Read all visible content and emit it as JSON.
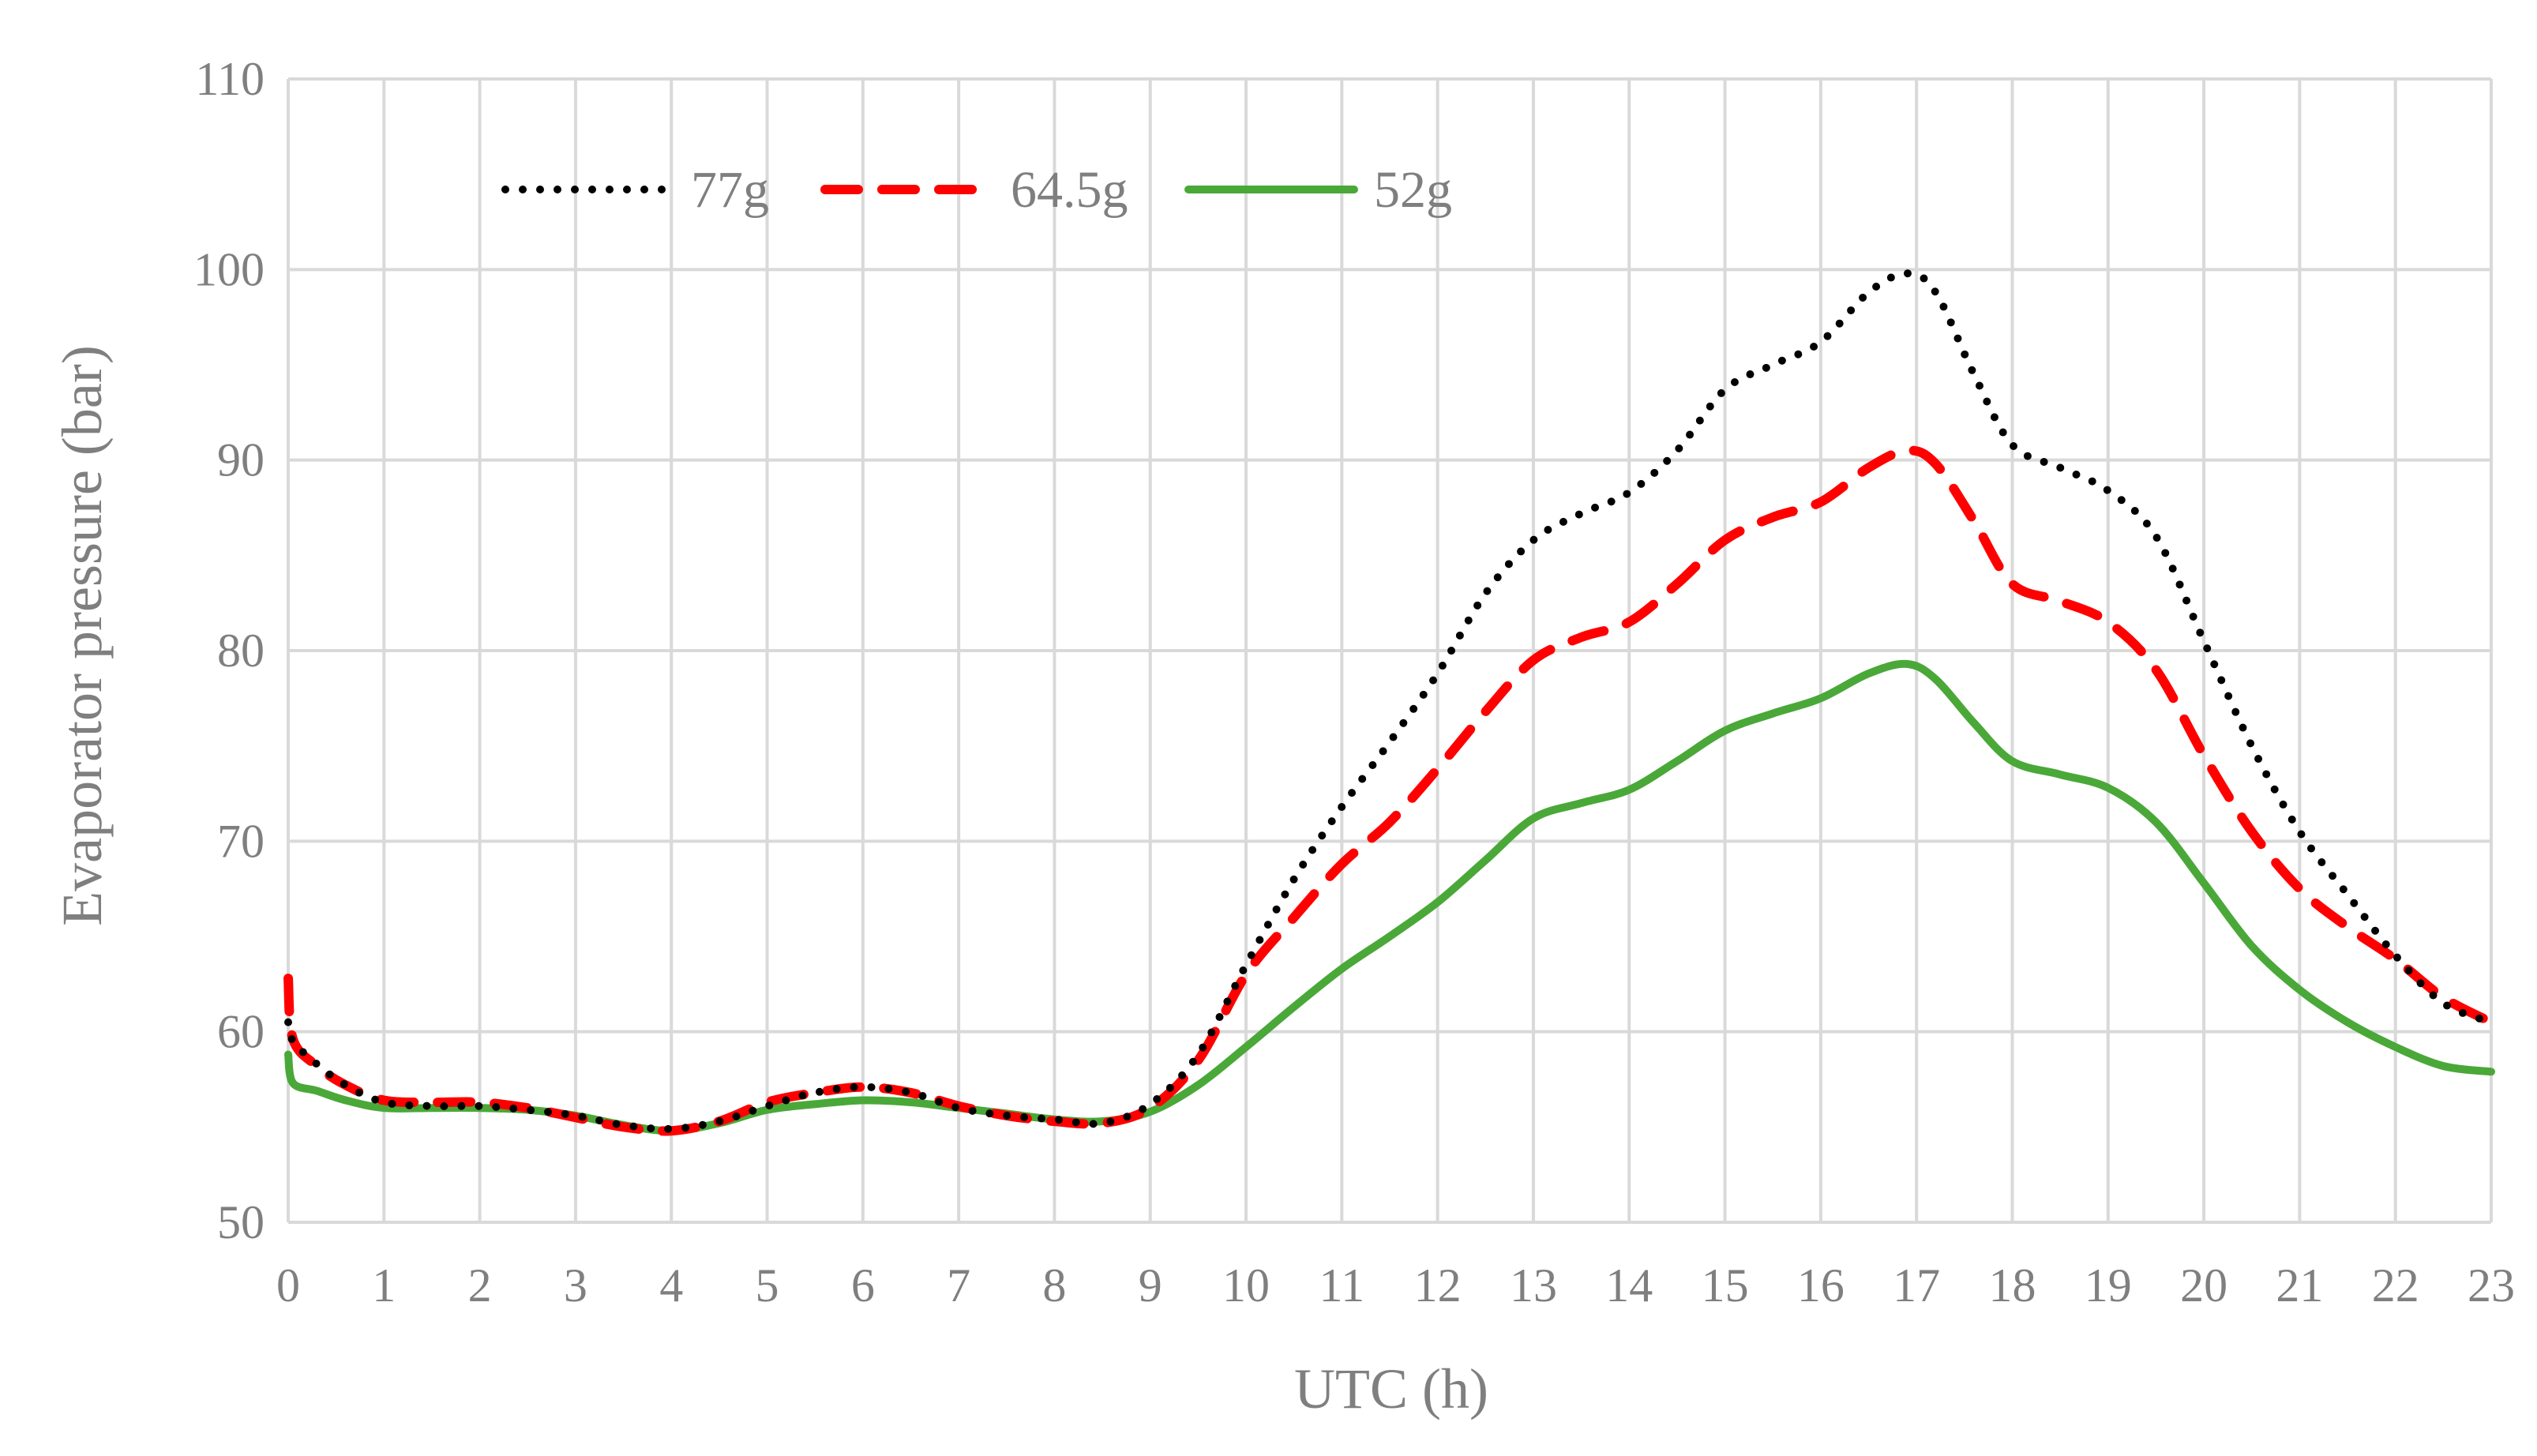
{
  "chart_data": {
    "type": "line",
    "xlabel": "UTC (h)",
    "ylabel": "Evaporator pressure (bar)",
    "xlim": [
      0,
      23
    ],
    "ylim": [
      50,
      110
    ],
    "xticks": [
      0,
      1,
      2,
      3,
      4,
      5,
      6,
      7,
      8,
      9,
      10,
      11,
      12,
      13,
      14,
      15,
      16,
      17,
      18,
      19,
      20,
      21,
      22,
      23
    ],
    "yticks": [
      50,
      60,
      70,
      80,
      90,
      100,
      110
    ],
    "grid": true,
    "legend_position": "top-left",
    "series": [
      {
        "name": "77g",
        "color": "#000000",
        "style": "dotted",
        "x": [
          0,
          0.05,
          0.3,
          0.6,
          1,
          1.5,
          2,
          2.5,
          3,
          3.5,
          4,
          4.5,
          5,
          5.5,
          6,
          6.5,
          7,
          7.5,
          8,
          8.5,
          9,
          9.5,
          10,
          10.5,
          11,
          11.5,
          12,
          12.5,
          13,
          13.5,
          14,
          14.5,
          15,
          15.5,
          16,
          16.5,
          16.9,
          17.2,
          17.6,
          18,
          18.5,
          19,
          19.5,
          20,
          20.5,
          21,
          21.5,
          22,
          22.5,
          23
        ],
        "values": [
          60.5,
          59.5,
          58.3,
          57.2,
          56.3,
          56.1,
          56.1,
          55.9,
          55.6,
          55.1,
          54.9,
          55.3,
          56.1,
          56.8,
          57.1,
          56.8,
          56.0,
          55.6,
          55.4,
          55.2,
          56.2,
          58.8,
          63.5,
          68.0,
          71.8,
          75.2,
          78.8,
          83.0,
          85.8,
          87.2,
          88.3,
          90.5,
          93.7,
          95.0,
          96.2,
          98.8,
          99.8,
          98.8,
          94.5,
          90.8,
          89.6,
          88.4,
          86.0,
          80.5,
          75.0,
          70.5,
          67.2,
          64.0,
          61.5,
          60.5
        ]
      },
      {
        "name": "64.5g",
        "color": "#ff0000",
        "style": "dashed",
        "x": [
          0,
          0.05,
          0.3,
          0.6,
          1,
          1.5,
          2,
          2.5,
          3,
          3.5,
          4,
          4.5,
          5,
          5.5,
          6,
          6.5,
          7,
          7.5,
          8,
          8.5,
          9,
          9.5,
          10,
          10.5,
          11,
          11.5,
          12,
          12.5,
          13,
          13.5,
          14,
          14.5,
          15,
          15.5,
          16,
          16.5,
          16.9,
          17.2,
          17.6,
          18,
          18.5,
          19,
          19.5,
          20,
          20.5,
          21,
          21.5,
          22,
          22.5,
          23
        ],
        "values": [
          62.8,
          59.6,
          58.2,
          57.2,
          56.4,
          56.3,
          56.3,
          56.0,
          55.5,
          55.0,
          54.8,
          55.3,
          56.3,
          56.8,
          57.1,
          56.8,
          56.1,
          55.6,
          55.3,
          55.2,
          56.0,
          58.5,
          63.0,
          66.0,
          68.8,
          71.0,
          73.8,
          76.8,
          79.5,
          80.7,
          81.5,
          83.5,
          85.8,
          87.0,
          87.8,
          89.6,
          90.5,
          89.8,
          86.8,
          83.5,
          82.6,
          81.5,
          79.0,
          74.5,
          70.5,
          67.5,
          65.5,
          63.8,
          61.8,
          60.5
        ]
      },
      {
        "name": "52g",
        "color": "#4aa839",
        "style": "solid",
        "x": [
          0,
          0.05,
          0.3,
          0.6,
          1,
          1.5,
          2,
          2.5,
          3,
          3.5,
          4,
          4.5,
          5,
          5.5,
          6,
          6.5,
          7,
          7.5,
          8,
          8.5,
          9,
          9.5,
          10,
          10.5,
          11,
          11.5,
          12,
          12.5,
          13,
          13.5,
          14,
          14.5,
          15,
          15.5,
          16,
          16.5,
          16.9,
          17.2,
          17.6,
          18,
          18.5,
          19,
          19.5,
          20,
          20.5,
          21,
          21.5,
          22,
          22.5,
          23
        ],
        "values": [
          58.8,
          57.3,
          56.9,
          56.4,
          56.0,
          56.0,
          56.0,
          55.9,
          55.6,
          55.1,
          54.8,
          55.2,
          55.9,
          56.2,
          56.4,
          56.3,
          56.0,
          55.7,
          55.4,
          55.3,
          55.8,
          57.2,
          59.2,
          61.3,
          63.3,
          65.0,
          66.8,
          69.0,
          71.2,
          72.0,
          72.7,
          74.2,
          75.8,
          76.7,
          77.5,
          78.8,
          79.3,
          78.5,
          76.2,
          74.2,
          73.5,
          72.8,
          71.0,
          67.8,
          64.5,
          62.2,
          60.5,
          59.2,
          58.2,
          57.9
        ]
      }
    ]
  }
}
